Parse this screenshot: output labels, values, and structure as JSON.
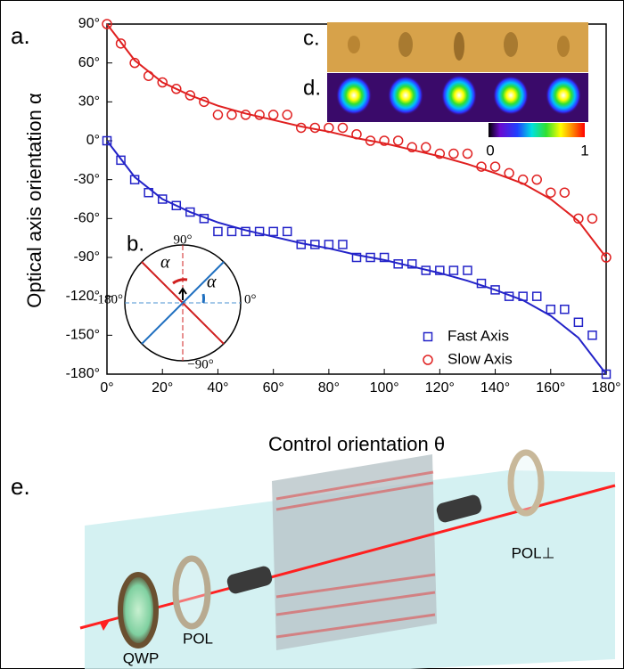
{
  "chart_data": {
    "type": "scatter",
    "x_label": "Control orientation θ",
    "y_label": "Optical axis orientation α",
    "xlim": [
      0,
      180
    ],
    "ylim": [
      -180,
      90
    ],
    "xticks": [
      {
        "value": 0,
        "label": "0°"
      },
      {
        "value": 20,
        "label": "20°"
      },
      {
        "value": 40,
        "label": "40°"
      },
      {
        "value": 60,
        "label": "60°"
      },
      {
        "value": 80,
        "label": "80°"
      },
      {
        "value": 100,
        "label": "100°"
      },
      {
        "value": 120,
        "label": "120°"
      },
      {
        "value": 140,
        "label": "140°"
      },
      {
        "value": 160,
        "label": "160°"
      },
      {
        "value": 180,
        "label": "180°"
      }
    ],
    "yticks": [
      {
        "value": 90,
        "label": "90°"
      },
      {
        "value": 60,
        "label": "60°"
      },
      {
        "value": 30,
        "label": "30°"
      },
      {
        "value": 0,
        "label": "0°"
      },
      {
        "value": -30,
        "label": "-30°"
      },
      {
        "value": -60,
        "label": "-60°"
      },
      {
        "value": -90,
        "label": "-90°"
      },
      {
        "value": -120,
        "label": "-120°"
      },
      {
        "value": -150,
        "label": "-150°"
      },
      {
        "value": -180,
        "label": "-180°"
      }
    ],
    "legend": "lower right",
    "x": [
      0,
      5,
      10,
      15,
      20,
      25,
      30,
      35,
      40,
      45,
      50,
      55,
      60,
      65,
      70,
      75,
      80,
      85,
      90,
      95,
      100,
      105,
      110,
      115,
      120,
      125,
      130,
      135,
      140,
      145,
      150,
      155,
      160,
      165,
      170,
      175,
      180
    ],
    "series": [
      {
        "name": "Fast Axis",
        "color": "#2323c8",
        "marker": "square",
        "values": [
          0,
          -15,
          -30,
          -40,
          -45,
          -50,
          -55,
          -60,
          -70,
          -70,
          -70,
          -70,
          -70,
          -70,
          -80,
          -80,
          -80,
          -80,
          -90,
          -90,
          -90,
          -95,
          -95,
          -100,
          -100,
          -100,
          -100,
          -110,
          -115,
          -120,
          -120,
          -120,
          -130,
          -130,
          -140,
          -150,
          -180
        ]
      },
      {
        "name": "Slow Axis",
        "color": "#e02020",
        "marker": "circle",
        "values": [
          90,
          75,
          60,
          50,
          45,
          40,
          35,
          30,
          20,
          20,
          20,
          20,
          20,
          20,
          10,
          10,
          10,
          10,
          5,
          0,
          0,
          0,
          -5,
          -5,
          -10,
          -10,
          -10,
          -20,
          -20,
          -25,
          -30,
          -30,
          -40,
          -40,
          -60,
          -60,
          -90
        ]
      }
    ],
    "fit_x": [
      0,
      10,
      20,
      30,
      40,
      50,
      60,
      70,
      80,
      90,
      100,
      110,
      120,
      130,
      140,
      150,
      160,
      170,
      180
    ],
    "fits": [
      {
        "color": "#2323c8",
        "values": [
          0,
          -28,
          -45,
          -55,
          -63,
          -69,
          -74,
          -79,
          -83,
          -88,
          -92,
          -97,
          -102,
          -108,
          -115,
          -123,
          -135,
          -152,
          -180
        ]
      },
      {
        "color": "#e02020",
        "values": [
          90,
          62,
          45,
          35,
          27,
          21,
          16,
          11,
          7,
          2,
          -2,
          -7,
          -12,
          -18,
          -25,
          -33,
          -45,
          -62,
          -90
        ]
      }
    ]
  },
  "panels": {
    "a": "a.",
    "b": "b.",
    "c": "c.",
    "d": "d.",
    "e": "e."
  },
  "inset_b": {
    "top": "90°",
    "left": "-180°",
    "right": "0°",
    "bottom": "−90°",
    "alpha_left": "α",
    "alpha_right": "α"
  },
  "colorbar": {
    "min": "0",
    "max": "1"
  },
  "components": {
    "qwp": "QWP",
    "pol": "POL",
    "pol_perp": "POL⊥"
  }
}
